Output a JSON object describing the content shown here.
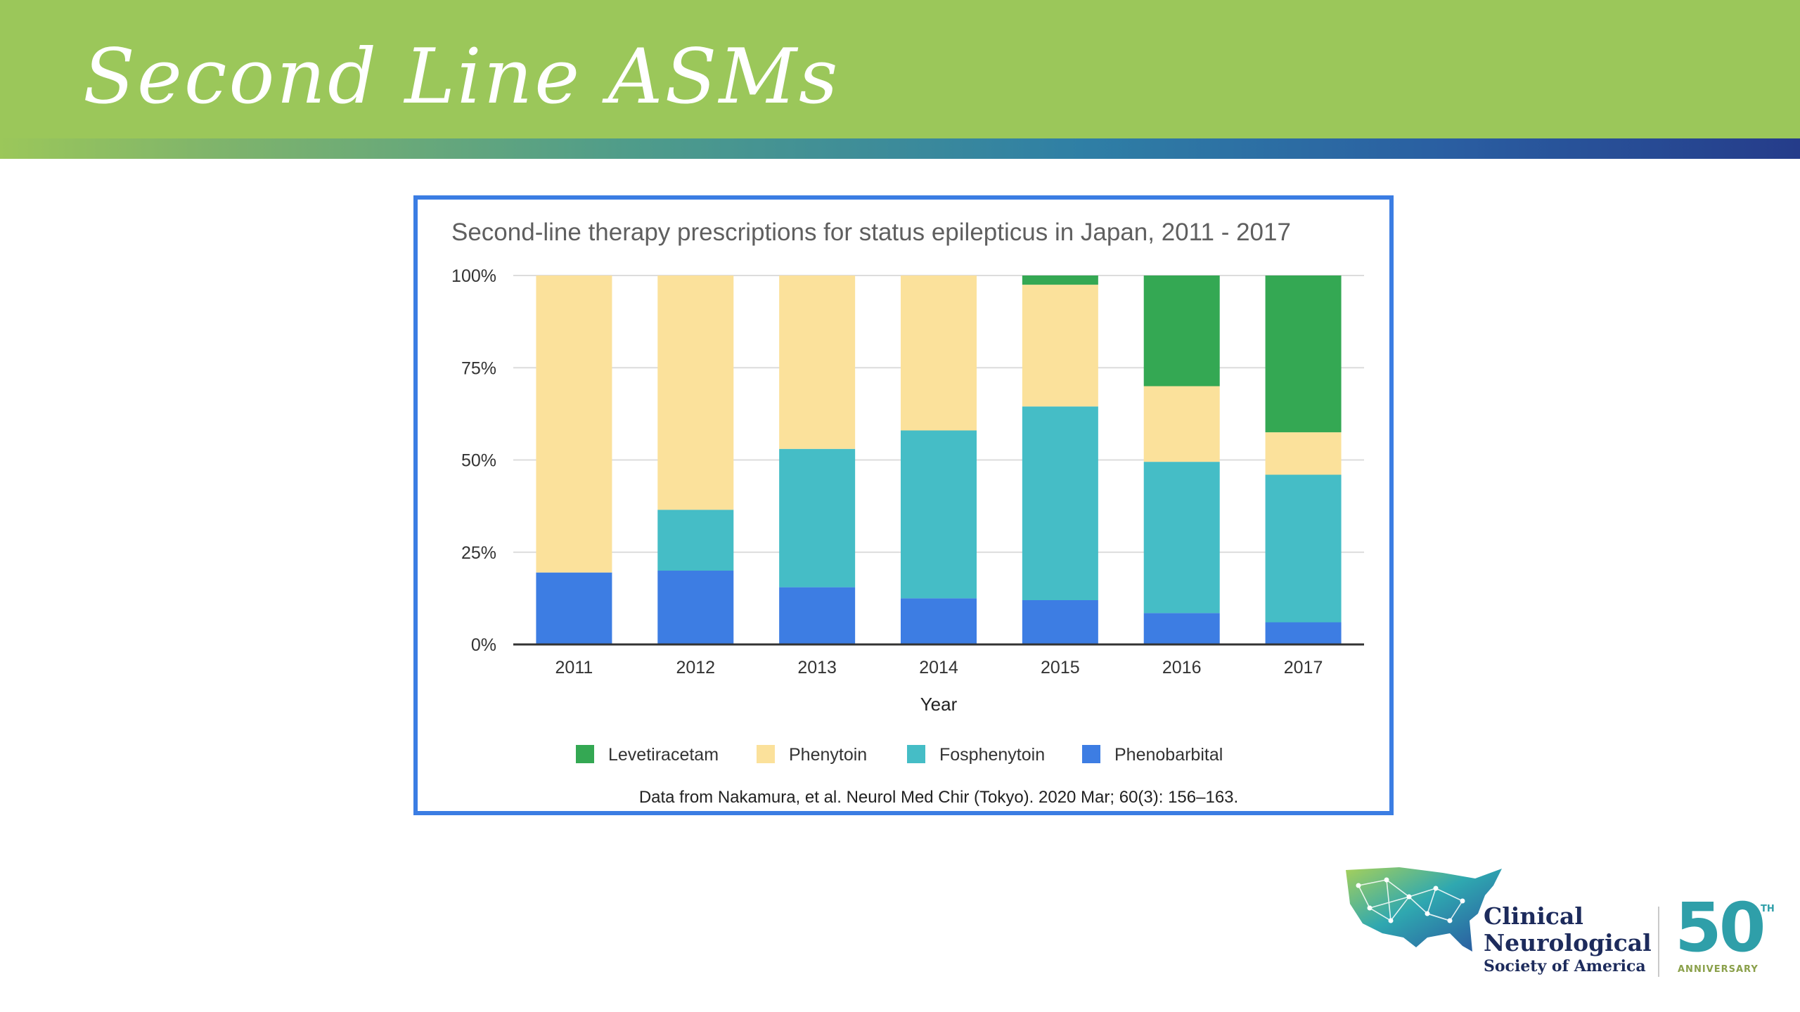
{
  "slide": {
    "title": "Second Line ASMs"
  },
  "colors": {
    "header": "#9bc75a",
    "chart_border": "#3b7de3"
  },
  "chart_data": {
    "type": "bar",
    "stacked": true,
    "title": "Second-line therapy prescriptions for status epilepticus in Japan, 2011 - 2017",
    "xlabel": "Year",
    "ylabel": "",
    "ylim": [
      0,
      100
    ],
    "yticks": [
      "0%",
      "25%",
      "50%",
      "75%",
      "100%"
    ],
    "categories": [
      "2011",
      "2012",
      "2013",
      "2014",
      "2015",
      "2016",
      "2017"
    ],
    "series": [
      {
        "name": "Phenobarbital",
        "color": "#3d7de3",
        "values": [
          19.5,
          20,
          15.5,
          12.5,
          12,
          8.5,
          6
        ]
      },
      {
        "name": "Fosphenytoin",
        "color": "#45bdc6",
        "values": [
          0,
          16.5,
          37.5,
          45.5,
          52.5,
          41,
          40
        ]
      },
      {
        "name": "Phenytoin",
        "color": "#fbe19b",
        "values": [
          80.5,
          63.5,
          47,
          42,
          33,
          20.5,
          11.5
        ]
      },
      {
        "name": "Levetiracetam",
        "color": "#34a853",
        "values": [
          0,
          0,
          0,
          0,
          2.5,
          30,
          42.5
        ]
      }
    ],
    "legend": [
      "Levetiracetam",
      "Phenytoin",
      "Fosphenytoin",
      "Phenobarbital"
    ],
    "legend_position": "bottom",
    "grid": true,
    "source": "Data from Nakamura, et al. Neurol Med Chir (Tokyo). 2020 Mar; 60(3): 156–163."
  },
  "logo": {
    "line1": "Clinical",
    "line2": "Neurological",
    "line3": "Society of America",
    "number": "50",
    "superscript": "TH",
    "tagline": "ANNIVERSARY"
  }
}
